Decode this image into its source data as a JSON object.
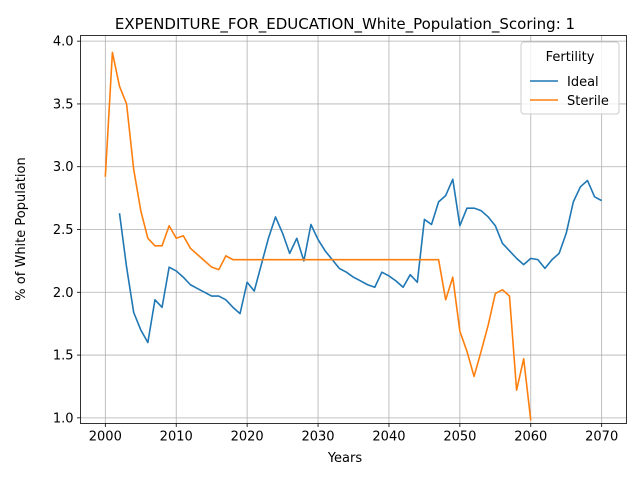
{
  "chart_data": {
    "type": "line",
    "title": "EXPENDITURE_FOR_EDUCATION_White_Population_Scoring: 1",
    "xlabel": "Years",
    "ylabel": "% of White Population",
    "xlim": [
      1996.5,
      2073.5
    ],
    "ylim": [
      0.955,
      4.045
    ],
    "xticks": [
      2000,
      2010,
      2020,
      2030,
      2040,
      2050,
      2060,
      2070
    ],
    "yticks": [
      1.0,
      1.5,
      2.0,
      2.5,
      3.0,
      3.5,
      4.0
    ],
    "xtick_labels": [
      "2000",
      "2010",
      "2020",
      "2030",
      "2040",
      "2050",
      "2060",
      "2070"
    ],
    "ytick_labels": [
      "1.0",
      "1.5",
      "2.0",
      "2.5",
      "3.0",
      "3.5",
      "4.0"
    ],
    "grid": true,
    "legend": {
      "title": "Fertility",
      "placement": "top-right"
    },
    "series": [
      {
        "name": "Ideal",
        "color": "#1f77b4",
        "x": [
          2002,
          2003,
          2004,
          2005,
          2006,
          2007,
          2008,
          2009,
          2010,
          2011,
          2012,
          2013,
          2014,
          2015,
          2016,
          2017,
          2018,
          2019,
          2020,
          2021,
          2022,
          2023,
          2024,
          2025,
          2026,
          2027,
          2028,
          2029,
          2030,
          2031,
          2032,
          2033,
          2034,
          2035,
          2036,
          2037,
          2038,
          2039,
          2040,
          2041,
          2042,
          2043,
          2044,
          2045,
          2046,
          2047,
          2048,
          2049,
          2050,
          2051,
          2052,
          2053,
          2054,
          2055,
          2056,
          2057,
          2058,
          2059,
          2060,
          2061,
          2062,
          2063,
          2064,
          2065,
          2066,
          2067,
          2068,
          2069,
          2070
        ],
        "values": [
          2.63,
          2.2,
          1.84,
          1.7,
          1.6,
          1.94,
          1.88,
          2.2,
          2.17,
          2.12,
          2.06,
          2.03,
          2.0,
          1.97,
          1.97,
          1.94,
          1.88,
          1.83,
          2.08,
          2.01,
          2.22,
          2.43,
          2.6,
          2.47,
          2.31,
          2.43,
          2.25,
          2.54,
          2.42,
          2.33,
          2.26,
          2.19,
          2.16,
          2.12,
          2.09,
          2.06,
          2.04,
          2.16,
          2.13,
          2.09,
          2.04,
          2.14,
          2.08,
          2.58,
          2.54,
          2.72,
          2.77,
          2.9,
          2.53,
          2.67,
          2.67,
          2.65,
          2.6,
          2.53,
          2.39,
          2.33,
          2.27,
          2.22,
          2.27,
          2.26,
          2.19,
          2.26,
          2.31,
          2.47,
          2.72,
          2.84,
          2.89,
          2.76,
          2.73
        ]
      },
      {
        "name": "Sterile",
        "color": "#ff7f0e",
        "x": [
          2000,
          2001,
          2002,
          2003,
          2004,
          2005,
          2006,
          2007,
          2008,
          2009,
          2010,
          2011,
          2012,
          2013,
          2014,
          2015,
          2016,
          2017,
          2018,
          2019,
          2020,
          2021,
          2022,
          2023,
          2024,
          2025,
          2026,
          2027,
          2028,
          2029,
          2030,
          2031,
          2032,
          2033,
          2034,
          2035,
          2036,
          2037,
          2038,
          2039,
          2040,
          2041,
          2042,
          2043,
          2044,
          2045,
          2046,
          2047,
          2048,
          2049,
          2050,
          2051,
          2052,
          2053,
          2054,
          2055,
          2056,
          2057,
          2058,
          2059,
          2060
        ],
        "values": [
          2.92,
          3.91,
          3.64,
          3.5,
          2.98,
          2.65,
          2.43,
          2.37,
          2.37,
          2.53,
          2.43,
          2.45,
          2.35,
          2.3,
          2.25,
          2.2,
          2.18,
          2.29,
          2.26,
          2.26,
          2.26,
          2.26,
          2.26,
          2.26,
          2.26,
          2.26,
          2.26,
          2.26,
          2.26,
          2.26,
          2.26,
          2.26,
          2.26,
          2.26,
          2.26,
          2.26,
          2.26,
          2.26,
          2.26,
          2.26,
          2.26,
          2.26,
          2.26,
          2.26,
          2.26,
          2.26,
          2.26,
          2.26,
          1.94,
          2.12,
          1.69,
          1.53,
          1.33,
          1.53,
          1.74,
          1.99,
          2.02,
          1.97,
          1.22,
          1.47,
          0.98
        ]
      }
    ]
  }
}
